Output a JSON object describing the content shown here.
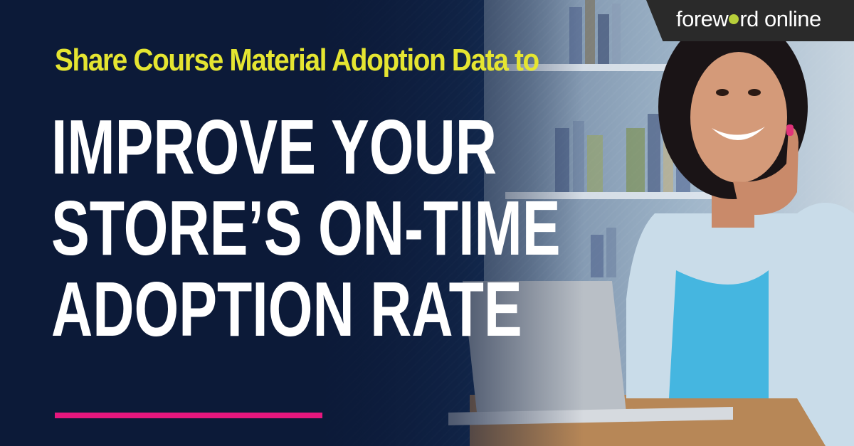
{
  "brand": {
    "logo_prefix": "forew",
    "logo_suffix": "rd online"
  },
  "subtitle": "Share Course Material Adoption Data to",
  "headline": {
    "lines": [
      "IMPROVE YOUR",
      "STORE’S ON-TIME",
      "ADOPTION RATE"
    ]
  },
  "colors": {
    "background": "#0f1f3d",
    "subtitle": "#e5e531",
    "headline": "#ffffff",
    "accent_bar": "#e6177e",
    "brand_band": "#2a2a2a",
    "brand_dot": "#b7cf3a"
  },
  "photo": {
    "subject": "smiling woman at laptop in front of bookshelf"
  }
}
